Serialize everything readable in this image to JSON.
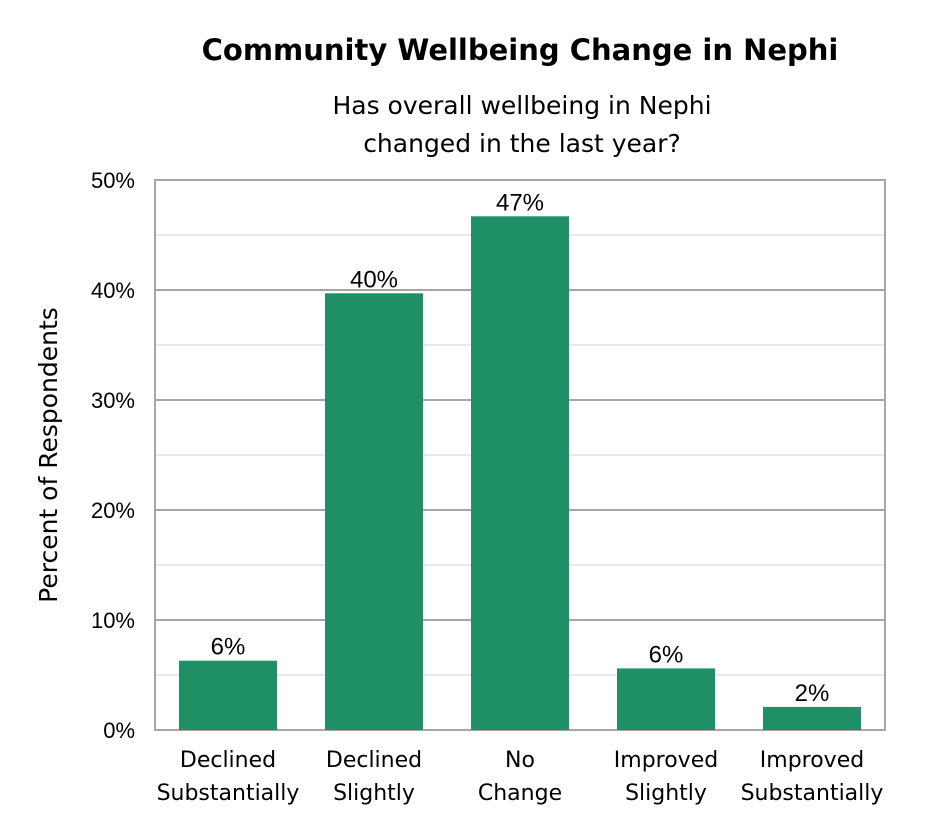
{
  "chart_data": {
    "type": "bar",
    "title": "Community Wellbeing Change in Nephi",
    "subtitle_lines": [
      "Has overall wellbeing in Nephi",
      "changed in the last year?"
    ],
    "ylabel": "Percent of Respondents",
    "xlabel": "",
    "ylim": [
      0,
      50
    ],
    "yticks": [
      "0%",
      "10%",
      "20%",
      "30%",
      "40%",
      "50%"
    ],
    "categories": [
      [
        "Declined",
        "Substantially"
      ],
      [
        "Declined",
        "Slightly"
      ],
      [
        "No",
        "Change"
      ],
      [
        "Improved",
        "Slightly"
      ],
      [
        "Improved",
        "Substantially"
      ]
    ],
    "values": [
      6.3,
      39.7,
      46.7,
      5.6,
      2.1
    ],
    "data_labels": [
      "6%",
      "40%",
      "47%",
      "6%",
      "2%"
    ],
    "bar_color": "#1f8f65",
    "grid": true,
    "legend": "none"
  }
}
